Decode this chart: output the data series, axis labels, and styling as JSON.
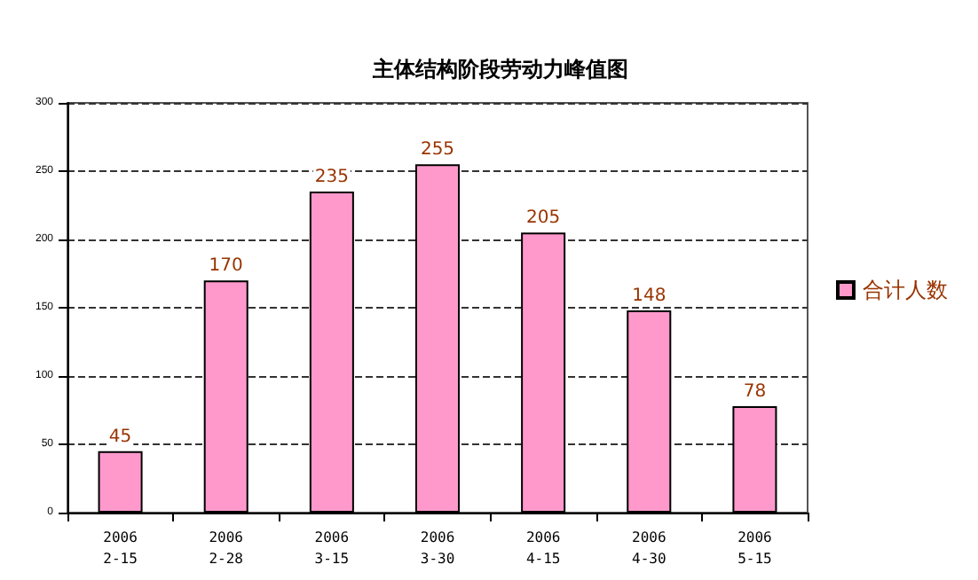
{
  "chart_data": {
    "type": "bar",
    "title": "主体结构阶段劳动力峰值图",
    "categories": [
      "2006\n2-15",
      "2006\n2-28",
      "2006\n3-15",
      "2006\n3-30",
      "2006\n4-15",
      "2006\n4-30",
      "2006\n5-15"
    ],
    "series": [
      {
        "name": "合计人数",
        "color": "#ff99cc",
        "values": [
          45,
          170,
          235,
          255,
          205,
          148,
          78
        ]
      }
    ],
    "ylim": [
      0,
      300
    ],
    "yticks": [
      0,
      50,
      100,
      150,
      200,
      250,
      300
    ],
    "grid": "y",
    "legend": "right",
    "data_labels": true
  }
}
